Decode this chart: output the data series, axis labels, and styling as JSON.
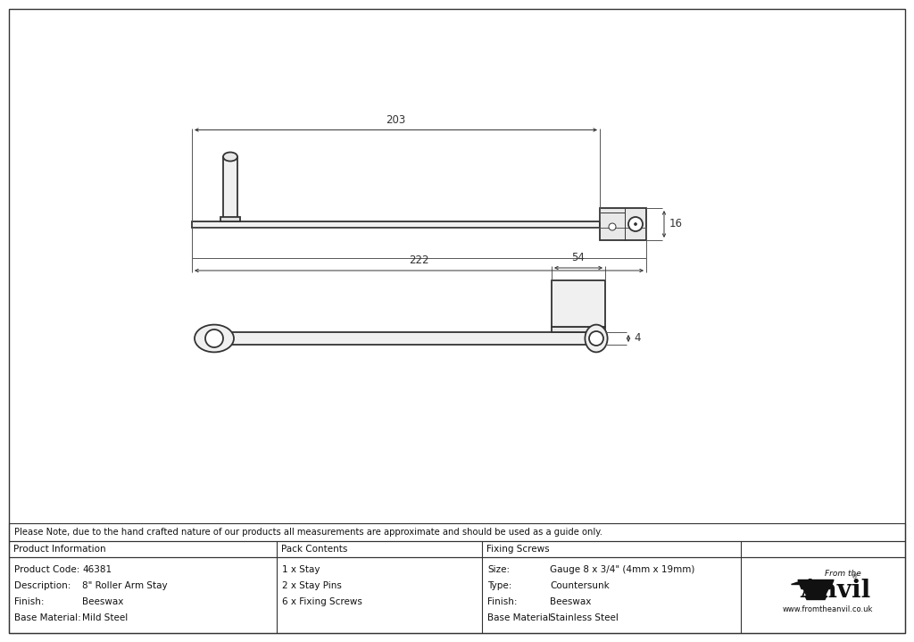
{
  "bg_color": "#ffffff",
  "line_color": "#333333",
  "dim_color": "#333333",
  "note_text": "Please Note, due to the hand crafted nature of our products all measurements are approximate and should be used as a guide only.",
  "table_data": {
    "col1_header": "Product Information",
    "col2_header": "Pack Contents",
    "col3_header": "Fixing Screws",
    "col1_rows": [
      [
        "Product Code:",
        "46381"
      ],
      [
        "Description:",
        "8\" Roller Arm Stay"
      ],
      [
        "Finish:",
        "Beeswax"
      ],
      [
        "Base Material:",
        "Mild Steel"
      ]
    ],
    "col2_rows": [
      "1 x Stay",
      "2 x Stay Pins",
      "6 x Fixing Screws"
    ],
    "col3_rows": [
      [
        "Size:",
        "Gauge 8 x 3/4\" (4mm x 19mm)"
      ],
      [
        "Type:",
        "Countersunk"
      ],
      [
        "Finish:",
        "Beeswax"
      ],
      [
        "Base Material:",
        "Stainless Steel"
      ]
    ]
  },
  "dim_203": "203",
  "dim_222": "222",
  "dim_16": "16",
  "dim_54": "54",
  "dim_4": "4",
  "anvil_text": "Anvil",
  "from_the_text": "From the",
  "website_text": "www.fromtheanvil.co.uk"
}
